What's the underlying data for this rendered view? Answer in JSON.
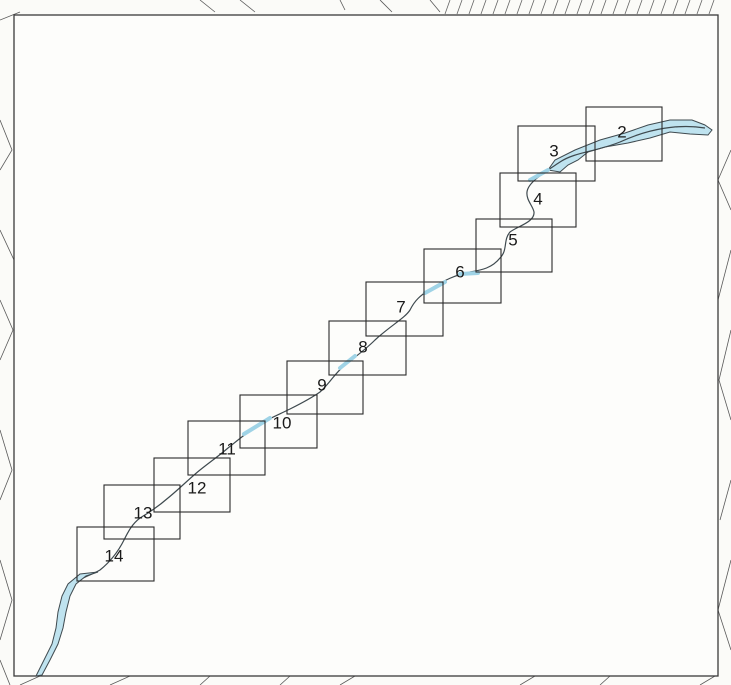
{
  "map": {
    "colors": {
      "water": "#bfe3ef",
      "tile_outline": "#2a2a2a",
      "background": "#fdfdfb"
    },
    "tiles": [
      {
        "label": "2"
      },
      {
        "label": "3"
      },
      {
        "label": "4"
      },
      {
        "label": "5"
      },
      {
        "label": "6"
      },
      {
        "label": "7"
      },
      {
        "label": "8"
      },
      {
        "label": "9"
      },
      {
        "label": "10"
      },
      {
        "label": "11"
      },
      {
        "label": "12"
      },
      {
        "label": "13"
      },
      {
        "label": "14"
      }
    ]
  }
}
